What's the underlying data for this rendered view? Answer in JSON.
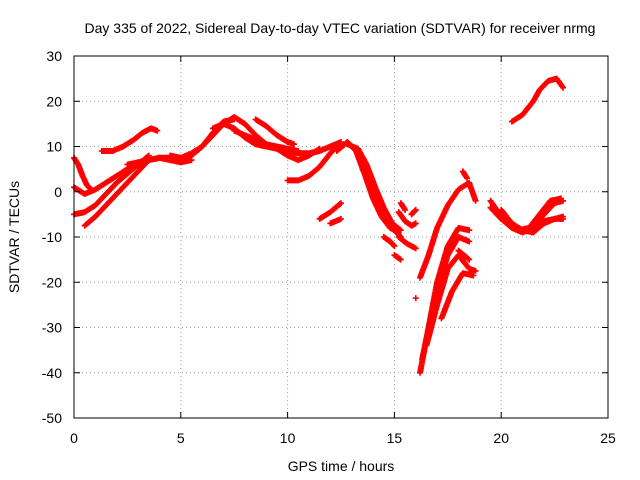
{
  "chart_data": {
    "type": "scatter",
    "title": "Day 335 of 2022, Sidereal Day-to-day VTEC variation (SDTVAR) for receiver nrmg",
    "xlabel": "GPS time / hours",
    "ylabel": "SDTVAR / TECUs",
    "xlim": [
      0,
      25
    ],
    "ylim": [
      -50,
      30
    ],
    "xticks": [
      "0",
      "5",
      "10",
      "15",
      "20",
      "25"
    ],
    "yticks": [
      "30",
      "20",
      "10",
      "0",
      "-10",
      "-20",
      "-30",
      "-40",
      "-50"
    ],
    "grid": true,
    "marker_color": "#ff0000",
    "series": [
      {
        "x": [
          0.0,
          0.2,
          0.4,
          0.6,
          0.8
        ],
        "y": [
          7.5,
          6.0,
          3.5,
          1.5,
          0.5
        ]
      },
      {
        "x": [
          0.0,
          0.5,
          1.0,
          1.5,
          2.0,
          2.5,
          3.0,
          3.5,
          4.0,
          4.5,
          5.0,
          5.5
        ],
        "y": [
          1.0,
          -0.5,
          0.5,
          2.0,
          3.5,
          5.0,
          6.0,
          7.0,
          7.5,
          7.0,
          6.5,
          7.0
        ]
      },
      {
        "x": [
          0.0,
          0.5,
          1.0,
          1.5,
          2.0,
          2.5,
          3.0,
          3.5
        ],
        "y": [
          -5.0,
          -4.5,
          -3.0,
          -0.5,
          2.0,
          4.0,
          6.0,
          8.0
        ]
      },
      {
        "x": [
          0.5,
          1.0,
          1.5,
          2.0,
          2.5,
          3.0,
          3.5
        ],
        "y": [
          -7.5,
          -5.5,
          -3.0,
          -0.5,
          2.0,
          4.5,
          7.0
        ]
      },
      {
        "x": [
          1.3,
          1.8,
          2.3,
          2.8,
          3.2,
          3.6,
          3.9
        ],
        "y": [
          9.0,
          9.0,
          10.0,
          11.5,
          13.0,
          14.0,
          13.5
        ]
      },
      {
        "x": [
          2.5,
          3.0,
          3.5,
          4.0,
          4.5,
          5.0,
          5.5,
          6.0,
          6.5,
          7.0,
          7.5
        ],
        "y": [
          6.0,
          6.5,
          7.0,
          7.5,
          7.5,
          7.0,
          8.0,
          10.0,
          13.0,
          15.5,
          16.0
        ]
      },
      {
        "x": [
          4.5,
          5.0,
          5.5,
          6.0,
          6.5,
          7.0,
          7.5,
          8.0,
          8.5,
          9.0,
          9.5,
          10.0,
          10.5,
          11.0,
          11.5,
          12.0,
          12.5
        ],
        "y": [
          8.0,
          7.5,
          8.5,
          10.0,
          12.5,
          15.0,
          16.5,
          15.0,
          12.5,
          10.5,
          9.5,
          9.0,
          8.5,
          8.5,
          9.0,
          10.0,
          11.0
        ]
      },
      {
        "x": [
          6.5,
          7.0,
          7.5,
          8.0,
          8.5,
          9.0,
          9.5,
          10.0,
          10.5,
          11.0,
          11.5
        ],
        "y": [
          14.0,
          15.0,
          14.0,
          12.0,
          10.5,
          10.0,
          9.5,
          8.0,
          7.0,
          8.0,
          9.5
        ]
      },
      {
        "x": [
          7.5,
          8.0,
          8.5,
          9.0,
          9.5,
          10.0,
          10.5
        ],
        "y": [
          13.5,
          12.5,
          11.5,
          10.5,
          10.0,
          9.5,
          9.0
        ]
      },
      {
        "x": [
          8.5,
          9.0,
          9.5,
          10.0,
          10.3
        ],
        "y": [
          16.0,
          14.5,
          12.5,
          11.0,
          10.5
        ]
      },
      {
        "x": [
          10.0,
          10.5,
          11.0,
          11.5,
          12.0,
          12.3
        ],
        "y": [
          2.5,
          2.5,
          3.5,
          5.5,
          8.5,
          10.0
        ]
      },
      {
        "x": [
          11.5,
          12.0,
          12.5
        ],
        "y": [
          -6.0,
          -4.5,
          -2.5
        ]
      },
      {
        "x": [
          12.0,
          12.5
        ],
        "y": [
          -7.0,
          -6.0
        ]
      },
      {
        "x": [
          12.3,
          12.8,
          13.2,
          13.6,
          14.0,
          14.4,
          14.8,
          15.2
        ],
        "y": [
          9.0,
          11.0,
          9.0,
          4.0,
          -1.5,
          -5.5,
          -8.0,
          -9.0
        ]
      },
      {
        "x": [
          12.8,
          13.3,
          13.7,
          14.1,
          14.5,
          14.9,
          15.3
        ],
        "y": [
          10.5,
          9.5,
          6.0,
          1.0,
          -3.5,
          -7.0,
          -8.5
        ]
      },
      {
        "x": [
          13.5,
          14.0,
          14.5,
          15.0,
          15.3
        ],
        "y": [
          5.0,
          1.0,
          -4.0,
          -8.5,
          -10.0
        ]
      },
      {
        "x": [
          14.5,
          14.8,
          15.0
        ],
        "y": [
          -10.0,
          -11.0,
          -12.0
        ]
      },
      {
        "x": [
          15.0,
          15.3
        ],
        "y": [
          -14.0,
          -15.0
        ]
      },
      {
        "x": [
          15.2,
          15.5,
          15.8,
          16.0
        ],
        "y": [
          -4.5,
          -6.5,
          -7.5,
          -7.0
        ]
      },
      {
        "x": [
          15.3,
          15.5
        ],
        "y": [
          -2.5,
          -4.0
        ]
      },
      {
        "x": [
          15.2,
          15.6,
          16.0
        ],
        "y": [
          -10.0,
          -11.5,
          -12.5
        ]
      },
      {
        "x": [
          15.8,
          16.0
        ],
        "y": [
          -5.0,
          -4.0
        ]
      },
      {
        "x": [
          16.0
        ],
        "y": [
          -23.5
        ]
      },
      {
        "x": [
          16.2,
          16.6,
          17.0,
          17.5,
          18.0,
          18.5,
          18.8
        ],
        "y": [
          -19.0,
          -14.0,
          -8.0,
          -3.0,
          0.5,
          2.0,
          -2.0
        ]
      },
      {
        "x": [
          18.2,
          18.4
        ],
        "y": [
          4.5,
          3.0
        ]
      },
      {
        "x": [
          16.2,
          16.6,
          17.0,
          17.5,
          18.0,
          18.5
        ],
        "y": [
          -40.0,
          -30.0,
          -20.0,
          -12.0,
          -8.0,
          -8.5
        ]
      },
      {
        "x": [
          16.3,
          16.7,
          17.1,
          17.5,
          18.0,
          18.5
        ],
        "y": [
          -37.0,
          -28.0,
          -20.0,
          -14.0,
          -10.0,
          -11.0
        ]
      },
      {
        "x": [
          16.5,
          17.0,
          17.5,
          18.0,
          18.5,
          18.8
        ],
        "y": [
          -34.0,
          -25.0,
          -17.0,
          -14.0,
          -17.0,
          -17.5
        ]
      },
      {
        "x": [
          17.2,
          17.7,
          18.2,
          18.7
        ],
        "y": [
          -28.0,
          -22.0,
          -18.0,
          -18.5
        ]
      },
      {
        "x": [
          18.0,
          18.5
        ],
        "y": [
          -13.0,
          -15.0
        ]
      },
      {
        "x": [
          19.5,
          20.0,
          20.5,
          21.0,
          21.5,
          22.0,
          22.5,
          22.9
        ],
        "y": [
          -2.0,
          -5.5,
          -7.5,
          -8.5,
          -8.0,
          -5.0,
          -2.5,
          -2.0
        ]
      },
      {
        "x": [
          19.5,
          20.0,
          20.5,
          21.0,
          21.5,
          22.0,
          22.5,
          22.9
        ],
        "y": [
          -3.5,
          -6.0,
          -8.0,
          -9.0,
          -8.0,
          -6.5,
          -6.0,
          -6.0
        ]
      },
      {
        "x": [
          19.8,
          20.3,
          20.8,
          21.3,
          21.8,
          22.3,
          22.8
        ],
        "y": [
          -4.5,
          -7.0,
          -8.5,
          -8.0,
          -5.0,
          -2.0,
          -1.5
        ]
      },
      {
        "x": [
          20.0,
          20.5,
          21.0,
          21.5,
          22.0,
          22.5,
          22.9
        ],
        "y": [
          -4.0,
          -7.0,
          -8.5,
          -9.0,
          -7.0,
          -6.0,
          -5.5
        ]
      },
      {
        "x": [
          20.5,
          21.0,
          21.5,
          21.8,
          22.2,
          22.6,
          22.9
        ],
        "y": [
          15.5,
          17.0,
          20.0,
          22.5,
          24.5,
          25.0,
          23.0
        ]
      }
    ]
  }
}
